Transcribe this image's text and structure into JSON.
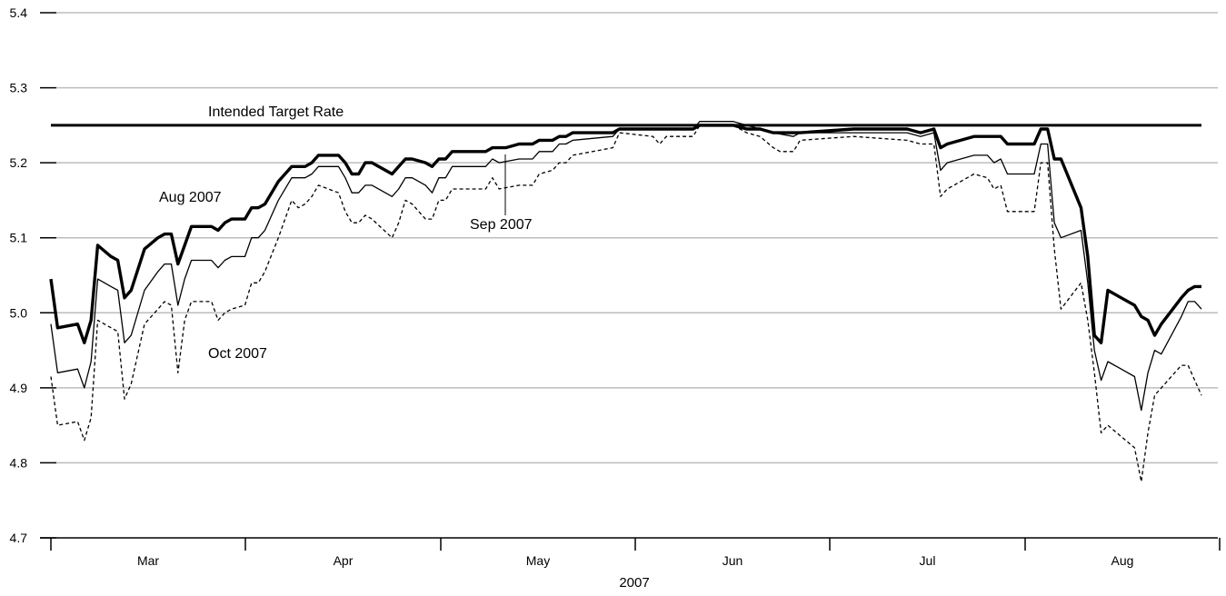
{
  "chart_data": {
    "type": "line",
    "title": "",
    "xlabel": "2007",
    "ylabel": "",
    "ylim": [
      4.7,
      5.4
    ],
    "yticks": [
      "4.7",
      "4.8",
      "4.9",
      "5.0",
      "5.1",
      "5.2",
      "5.3",
      "5.4"
    ],
    "months": [
      "Mar",
      "Apr",
      "May",
      "Jun",
      "Jul",
      "Aug"
    ],
    "grid": true,
    "target_rate": {
      "label": "Intended Target Rate",
      "value": 5.25
    },
    "annotations": {
      "aug": "Aug 2007",
      "sep": "Sep 2007",
      "oct": "Oct 2007"
    },
    "series": [
      {
        "key": "aug",
        "style": "thick",
        "points": [
          [
            0,
            5.045
          ],
          [
            1,
            4.98
          ],
          [
            4,
            4.985
          ],
          [
            5,
            4.96
          ],
          [
            6,
            4.99
          ],
          [
            7,
            5.09
          ],
          [
            9,
            5.075
          ],
          [
            10,
            5.07
          ],
          [
            11,
            5.02
          ],
          [
            12,
            5.03
          ],
          [
            14,
            5.085
          ],
          [
            16,
            5.1
          ],
          [
            17,
            5.105
          ],
          [
            18,
            5.105
          ],
          [
            19,
            5.065
          ],
          [
            20,
            5.09
          ],
          [
            21,
            5.115
          ],
          [
            24,
            5.115
          ],
          [
            25,
            5.11
          ],
          [
            26,
            5.12
          ],
          [
            27,
            5.125
          ],
          [
            29,
            5.125
          ],
          [
            30,
            5.14
          ],
          [
            31,
            5.14
          ],
          [
            32,
            5.145
          ],
          [
            34,
            5.175
          ],
          [
            36,
            5.195
          ],
          [
            38,
            5.195
          ],
          [
            39,
            5.2
          ],
          [
            40,
            5.21
          ],
          [
            43,
            5.21
          ],
          [
            44,
            5.2
          ],
          [
            45,
            5.185
          ],
          [
            46,
            5.185
          ],
          [
            47,
            5.2
          ],
          [
            48,
            5.2
          ],
          [
            51,
            5.185
          ],
          [
            52,
            5.195
          ],
          [
            53,
            5.205
          ],
          [
            54,
            5.205
          ],
          [
            56,
            5.2
          ],
          [
            57,
            5.195
          ],
          [
            58,
            5.205
          ],
          [
            59,
            5.205
          ],
          [
            60,
            5.215
          ],
          [
            65,
            5.215
          ],
          [
            66,
            5.22
          ],
          [
            68,
            5.22
          ],
          [
            70,
            5.225
          ],
          [
            72,
            5.225
          ],
          [
            73,
            5.23
          ],
          [
            75,
            5.23
          ],
          [
            76,
            5.235
          ],
          [
            77,
            5.235
          ],
          [
            78,
            5.24
          ],
          [
            84,
            5.24
          ],
          [
            85,
            5.245
          ],
          [
            96,
            5.245
          ],
          [
            97,
            5.25
          ],
          [
            102,
            5.25
          ],
          [
            104,
            5.245
          ],
          [
            106,
            5.245
          ],
          [
            108,
            5.24
          ],
          [
            111,
            5.24
          ],
          [
            112,
            5.24
          ],
          [
            120,
            5.245
          ],
          [
            128,
            5.245
          ],
          [
            130,
            5.24
          ],
          [
            132,
            5.245
          ],
          [
            133,
            5.22
          ],
          [
            134,
            5.225
          ],
          [
            136,
            5.23
          ],
          [
            138,
            5.235
          ],
          [
            142,
            5.235
          ],
          [
            143,
            5.225
          ],
          [
            147,
            5.225
          ],
          [
            148,
            5.245
          ],
          [
            149,
            5.245
          ],
          [
            150,
            5.205
          ],
          [
            151,
            5.205
          ],
          [
            154,
            5.14
          ],
          [
            155,
            5.075
          ],
          [
            156,
            4.97
          ],
          [
            157,
            4.96
          ],
          [
            158,
            5.03
          ],
          [
            160,
            5.02
          ],
          [
            162,
            5.01
          ],
          [
            163,
            4.995
          ],
          [
            164,
            4.99
          ],
          [
            165,
            4.97
          ],
          [
            166,
            4.985
          ],
          [
            169,
            5.02
          ],
          [
            170,
            5.03
          ],
          [
            171,
            5.035
          ],
          [
            172,
            5.035
          ]
        ]
      },
      {
        "key": "sep",
        "style": "thin",
        "points": [
          [
            0,
            4.985
          ],
          [
            1,
            4.92
          ],
          [
            4,
            4.925
          ],
          [
            5,
            4.9
          ],
          [
            6,
            4.935
          ],
          [
            7,
            5.045
          ],
          [
            9,
            5.035
          ],
          [
            10,
            5.03
          ],
          [
            11,
            4.96
          ],
          [
            12,
            4.97
          ],
          [
            14,
            5.03
          ],
          [
            16,
            5.055
          ],
          [
            17,
            5.065
          ],
          [
            18,
            5.065
          ],
          [
            19,
            5.01
          ],
          [
            20,
            5.045
          ],
          [
            21,
            5.07
          ],
          [
            24,
            5.07
          ],
          [
            25,
            5.06
          ],
          [
            26,
            5.07
          ],
          [
            27,
            5.075
          ],
          [
            29,
            5.075
          ],
          [
            30,
            5.1
          ],
          [
            31,
            5.1
          ],
          [
            32,
            5.11
          ],
          [
            34,
            5.15
          ],
          [
            36,
            5.18
          ],
          [
            38,
            5.18
          ],
          [
            39,
            5.185
          ],
          [
            40,
            5.195
          ],
          [
            43,
            5.195
          ],
          [
            44,
            5.18
          ],
          [
            45,
            5.16
          ],
          [
            46,
            5.16
          ],
          [
            47,
            5.17
          ],
          [
            48,
            5.17
          ],
          [
            51,
            5.155
          ],
          [
            52,
            5.165
          ],
          [
            53,
            5.18
          ],
          [
            54,
            5.18
          ],
          [
            56,
            5.17
          ],
          [
            57,
            5.16
          ],
          [
            58,
            5.18
          ],
          [
            59,
            5.18
          ],
          [
            60,
            5.195
          ],
          [
            65,
            5.195
          ],
          [
            66,
            5.205
          ],
          [
            67,
            5.2
          ],
          [
            70,
            5.205
          ],
          [
            72,
            5.205
          ],
          [
            73,
            5.215
          ],
          [
            75,
            5.215
          ],
          [
            76,
            5.225
          ],
          [
            77,
            5.225
          ],
          [
            78,
            5.23
          ],
          [
            84,
            5.235
          ],
          [
            85,
            5.245
          ],
          [
            96,
            5.245
          ],
          [
            97,
            5.255
          ],
          [
            102,
            5.255
          ],
          [
            104,
            5.25
          ],
          [
            106,
            5.245
          ],
          [
            108,
            5.24
          ],
          [
            111,
            5.235
          ],
          [
            112,
            5.24
          ],
          [
            120,
            5.24
          ],
          [
            128,
            5.24
          ],
          [
            130,
            5.235
          ],
          [
            132,
            5.24
          ],
          [
            133,
            5.19
          ],
          [
            134,
            5.2
          ],
          [
            136,
            5.205
          ],
          [
            138,
            5.21
          ],
          [
            140,
            5.21
          ],
          [
            141,
            5.2
          ],
          [
            142,
            5.205
          ],
          [
            143,
            5.185
          ],
          [
            147,
            5.185
          ],
          [
            148,
            5.225
          ],
          [
            149,
            5.225
          ],
          [
            150,
            5.12
          ],
          [
            151,
            5.1
          ],
          [
            154,
            5.11
          ],
          [
            155,
            5.04
          ],
          [
            156,
            4.95
          ],
          [
            157,
            4.91
          ],
          [
            158,
            4.935
          ],
          [
            160,
            4.925
          ],
          [
            162,
            4.915
          ],
          [
            163,
            4.87
          ],
          [
            164,
            4.92
          ],
          [
            165,
            4.95
          ],
          [
            166,
            4.945
          ],
          [
            169,
            4.995
          ],
          [
            170,
            5.015
          ],
          [
            171,
            5.015
          ],
          [
            172,
            5.005
          ]
        ]
      },
      {
        "key": "oct",
        "style": "dashed",
        "points": [
          [
            0,
            4.915
          ],
          [
            1,
            4.85
          ],
          [
            4,
            4.855
          ],
          [
            5,
            4.83
          ],
          [
            6,
            4.86
          ],
          [
            7,
            4.99
          ],
          [
            9,
            4.98
          ],
          [
            10,
            4.975
          ],
          [
            11,
            4.885
          ],
          [
            12,
            4.905
          ],
          [
            14,
            4.985
          ],
          [
            16,
            5.005
          ],
          [
            17,
            5.015
          ],
          [
            18,
            5.01
          ],
          [
            19,
            4.92
          ],
          [
            20,
            4.99
          ],
          [
            21,
            5.015
          ],
          [
            24,
            5.015
          ],
          [
            25,
            4.99
          ],
          [
            26,
            5.0
          ],
          [
            27,
            5.005
          ],
          [
            29,
            5.01
          ],
          [
            30,
            5.04
          ],
          [
            31,
            5.04
          ],
          [
            32,
            5.055
          ],
          [
            34,
            5.1
          ],
          [
            36,
            5.15
          ],
          [
            37,
            5.14
          ],
          [
            38,
            5.145
          ],
          [
            39,
            5.155
          ],
          [
            40,
            5.17
          ],
          [
            43,
            5.16
          ],
          [
            44,
            5.135
          ],
          [
            45,
            5.12
          ],
          [
            46,
            5.12
          ],
          [
            47,
            5.13
          ],
          [
            48,
            5.125
          ],
          [
            51,
            5.1
          ],
          [
            52,
            5.12
          ],
          [
            53,
            5.15
          ],
          [
            54,
            5.145
          ],
          [
            56,
            5.125
          ],
          [
            57,
            5.125
          ],
          [
            58,
            5.15
          ],
          [
            59,
            5.15
          ],
          [
            60,
            5.165
          ],
          [
            65,
            5.165
          ],
          [
            66,
            5.18
          ],
          [
            67,
            5.165
          ],
          [
            70,
            5.17
          ],
          [
            72,
            5.17
          ],
          [
            73,
            5.185
          ],
          [
            75,
            5.19
          ],
          [
            76,
            5.2
          ],
          [
            77,
            5.2
          ],
          [
            78,
            5.21
          ],
          [
            84,
            5.22
          ],
          [
            85,
            5.24
          ],
          [
            90,
            5.235
          ],
          [
            91,
            5.225
          ],
          [
            92,
            5.235
          ],
          [
            96,
            5.235
          ],
          [
            97,
            5.25
          ],
          [
            102,
            5.25
          ],
          [
            104,
            5.24
          ],
          [
            106,
            5.235
          ],
          [
            108,
            5.22
          ],
          [
            109,
            5.215
          ],
          [
            111,
            5.215
          ],
          [
            112,
            5.23
          ],
          [
            120,
            5.235
          ],
          [
            128,
            5.23
          ],
          [
            130,
            5.225
          ],
          [
            132,
            5.225
          ],
          [
            133,
            5.155
          ],
          [
            134,
            5.165
          ],
          [
            136,
            5.175
          ],
          [
            138,
            5.185
          ],
          [
            140,
            5.18
          ],
          [
            141,
            5.165
          ],
          [
            142,
            5.17
          ],
          [
            143,
            5.135
          ],
          [
            147,
            5.135
          ],
          [
            148,
            5.2
          ],
          [
            149,
            5.2
          ],
          [
            150,
            5.085
          ],
          [
            151,
            5.005
          ],
          [
            154,
            5.04
          ],
          [
            155,
            4.99
          ],
          [
            156,
            4.92
          ],
          [
            157,
            4.84
          ],
          [
            158,
            4.85
          ],
          [
            160,
            4.835
          ],
          [
            162,
            4.82
          ],
          [
            163,
            4.775
          ],
          [
            164,
            4.84
          ],
          [
            165,
            4.89
          ],
          [
            166,
            4.9
          ],
          [
            169,
            4.93
          ],
          [
            170,
            4.93
          ],
          [
            171,
            4.91
          ],
          [
            172,
            4.89
          ]
        ]
      }
    ]
  }
}
